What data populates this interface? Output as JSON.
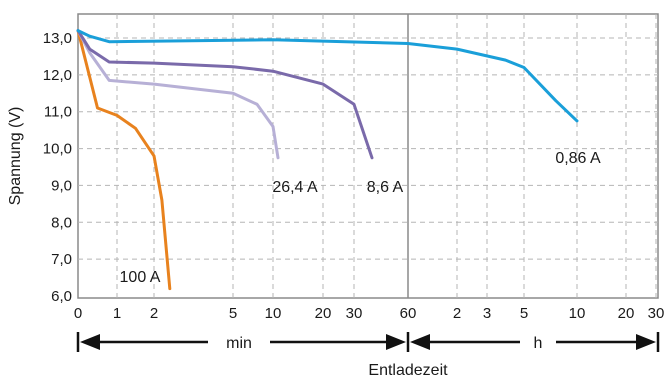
{
  "chart_data": {
    "type": "line",
    "ylabel": "Spannung (V)",
    "xlabel": "Entladezeit",
    "ylim": [
      6.0,
      13.0
    ],
    "y_ticks": [
      "13,0",
      "12,0",
      "11,0",
      "10,0",
      "9,0",
      "8,0",
      "7,0",
      "6,0"
    ],
    "x_ticks": [
      "0",
      "1",
      "2",
      "5",
      "10",
      "20",
      "30",
      "60",
      "2",
      "3",
      "5",
      "10",
      "20",
      "30"
    ],
    "x_tick_positions": [
      "0 min",
      "1 min",
      "2 min",
      "5 min",
      "10 min",
      "20 min",
      "30 min",
      "1 h",
      "2 h",
      "3 h",
      "5 h",
      "10 h",
      "20 h",
      "30 h"
    ],
    "x_segments": [
      {
        "label": "min",
        "from": "0 min",
        "to": "60 min"
      },
      {
        "label": "h",
        "from": "1 h",
        "to": "30 h"
      }
    ],
    "grid": true,
    "series": [
      {
        "name": "100 A",
        "color": "#e8821e",
        "points": [
          [
            0,
            13.2
          ],
          [
            0.5,
            11.1
          ],
          [
            1.0,
            10.9
          ],
          [
            1.5,
            10.55
          ],
          [
            2.0,
            9.8
          ],
          [
            2.3,
            8.6
          ],
          [
            2.6,
            6.2
          ]
        ]
      },
      {
        "name": "26,4 A",
        "color": "#b7b0d6",
        "points": [
          [
            0,
            13.2
          ],
          [
            0.3,
            12.6
          ],
          [
            0.8,
            11.85
          ],
          [
            2.0,
            11.75
          ],
          [
            5.0,
            11.5
          ],
          [
            8.0,
            11.2
          ],
          [
            10.0,
            10.6
          ],
          [
            11.0,
            9.75
          ]
        ]
      },
      {
        "name": "8,6 A",
        "color": "#7a6aaa",
        "points": [
          [
            0,
            13.2
          ],
          [
            0.3,
            12.7
          ],
          [
            0.8,
            12.35
          ],
          [
            2.0,
            12.32
          ],
          [
            5.0,
            12.22
          ],
          [
            10.0,
            12.1
          ],
          [
            20.0,
            11.75
          ],
          [
            30.0,
            11.2
          ],
          [
            40.0,
            9.75
          ]
        ]
      },
      {
        "name": "0,86 A",
        "color": "#1a9fd9",
        "points": [
          [
            0,
            13.2
          ],
          [
            0.3,
            13.05
          ],
          [
            0.8,
            12.9
          ],
          [
            10.0,
            12.95
          ],
          [
            60.0,
            12.85
          ],
          [
            120.0,
            12.7
          ],
          [
            240.0,
            12.4
          ],
          [
            300.0,
            12.2
          ],
          [
            480.0,
            11.3
          ],
          [
            600.0,
            10.75
          ]
        ]
      }
    ]
  }
}
